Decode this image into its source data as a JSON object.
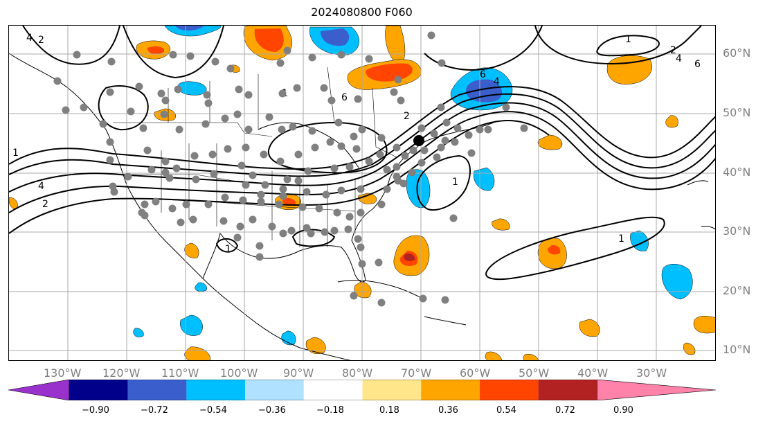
{
  "title": "2024080800 F060",
  "latitude_labels": [
    "60°N",
    "50°N",
    "40°N",
    "30°N",
    "20°N",
    "10°N"
  ],
  "longitude_labels": [
    "130°W",
    "120°W",
    "110°W",
    "100°W",
    "90°W",
    "80°W",
    "70°W",
    "60°W",
    "50°W",
    "40°W",
    "30°W"
  ],
  "colorbar": {
    "tick_labels": [
      "−0.90",
      "−0.72",
      "−0.54",
      "−0.36",
      "−0.18",
      "0.18",
      "0.36",
      "0.54",
      "0.72",
      "0.90"
    ],
    "colors": [
      "#9932cc",
      "#00008b",
      "#3a5fcd",
      "#00bfff",
      "#b0e2ff",
      "#ffffff",
      "#ffe68a",
      "#ffa500",
      "#ff4500",
      "#b22222",
      "#ff82ab"
    ]
  },
  "contour_labels": [
    "1",
    "2",
    "4",
    "6"
  ],
  "marked_location": {
    "lat": 45.3,
    "lon": -70.3
  },
  "colors": {
    "grid": "#a8a8a8",
    "station": "#808080",
    "contour": "#000000"
  }
}
